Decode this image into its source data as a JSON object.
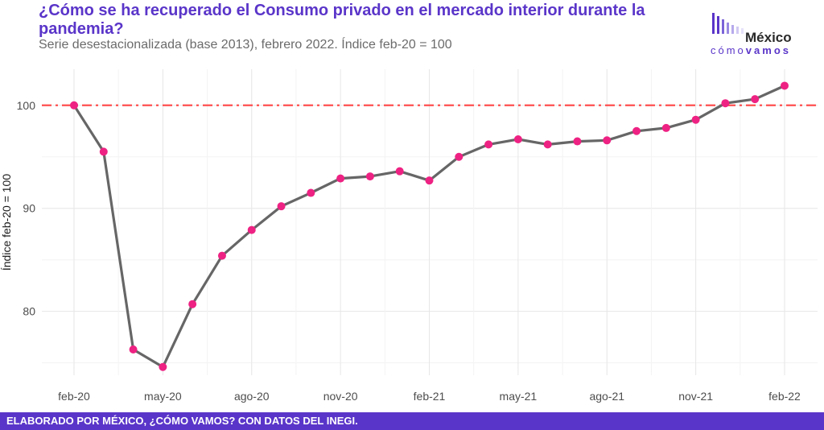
{
  "header": {
    "title": "¿Cómo se ha recuperado el Consumo privado en el mercado interior durante la pandemia?",
    "subtitle": "Serie desestacionalizada (base 2013), febrero 2022. Índice feb-20 = 100"
  },
  "logo": {
    "word": "México",
    "sub_light": "cómo",
    "sub_bold": "vamos",
    "color": "#5a35c9"
  },
  "footer": {
    "text": "ELABORADO POR MÉXICO, ¿CÓMO VAMOS? CON DATOS DEL INEGI."
  },
  "chart_data": {
    "type": "line",
    "title": "¿Cómo se ha recuperado el Consumo privado en el mercado interior durante la pandemia?",
    "ylabel": "Índice feb-20 = 100",
    "xlabel": "",
    "x": [
      "feb-20",
      "mar-20",
      "abr-20",
      "may-20",
      "jun-20",
      "jul-20",
      "ago-20",
      "sep-20",
      "oct-20",
      "nov-20",
      "dic-20",
      "ene-21",
      "feb-21",
      "mar-21",
      "abr-21",
      "may-21",
      "jun-21",
      "jul-21",
      "ago-21",
      "sep-21",
      "oct-21",
      "nov-21",
      "dic-21",
      "ene-22",
      "feb-22"
    ],
    "series": [
      {
        "values": [
          100.0,
          95.5,
          76.3,
          74.6,
          80.7,
          85.4,
          87.9,
          90.2,
          91.5,
          92.9,
          93.1,
          93.6,
          92.7,
          95.0,
          96.2,
          96.7,
          96.2,
          96.5,
          96.6,
          97.5,
          97.8,
          98.6,
          100.2,
          100.6,
          101.9
        ],
        "line_color": "#666666",
        "marker_color": "#ee2283"
      }
    ],
    "x_tick_labels": [
      "feb-20",
      "may-20",
      "ago-20",
      "nov-20",
      "feb-21",
      "may-21",
      "ago-21",
      "nov-21",
      "feb-22"
    ],
    "y_ticks": [
      80,
      90,
      100
    ],
    "ylim": [
      73.8,
      103.5
    ],
    "reference_line": {
      "value": 100,
      "color": "#ff4f4f",
      "style": "dash-dot"
    },
    "grid": true,
    "legend": "none"
  }
}
